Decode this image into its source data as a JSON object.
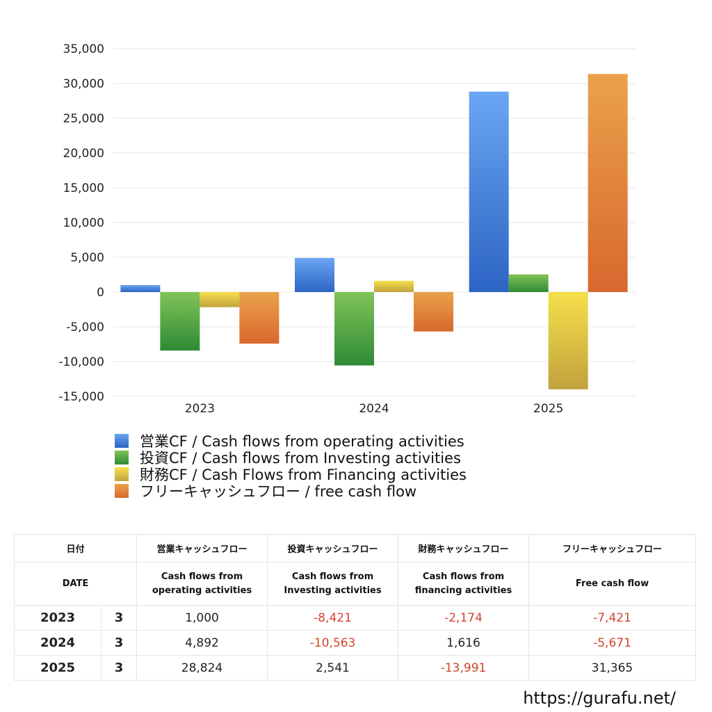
{
  "chart_data": {
    "type": "bar",
    "categories": [
      "2023",
      "2024",
      "2025"
    ],
    "series": [
      {
        "name": "営業CF / Cash flows from operating activities",
        "values": [
          1000,
          4892,
          28824
        ],
        "color_top": "#6aa6f2",
        "color_bottom": "#2d64c4"
      },
      {
        "name": "投資CF / Cash flows from Investing activities",
        "values": [
          -8421,
          -10563,
          2541
        ],
        "color_top": "#7fc458",
        "color_bottom": "#2f8a35"
      },
      {
        "name": "財務CF / Cash Flows from Financing activities",
        "values": [
          -2174,
          1616,
          -13991
        ],
        "color_top": "#f6e04a",
        "color_bottom": "#c1a23e"
      },
      {
        "name": "フリーキャッシュフロー / free cash flow",
        "values": [
          -7421,
          -5671,
          31365
        ],
        "color_top": "#eaa24a",
        "color_bottom": "#d8682e"
      }
    ],
    "yticks": [
      "35,000",
      "30,000",
      "25,000",
      "20,000",
      "15,000",
      "10,000",
      "5,000",
      "0",
      "-5,000",
      "-10,000",
      "-15,000"
    ],
    "ylim": [
      -15000,
      35000
    ],
    "grid": true,
    "legend_position": "bottom-left"
  },
  "table": {
    "header_date_ja": "日付",
    "header_date_en": "DATE",
    "columns": [
      {
        "ja": "営業キャッシュフロー",
        "en_line1": "Cash flows from",
        "en_line2": "operating activities"
      },
      {
        "ja": "投資キャッシュフロー",
        "en_line1": "Cash flows from",
        "en_line2": "Investing activities"
      },
      {
        "ja": "財務キャッシュフロー",
        "en_line1": "Cash flows from",
        "en_line2": "financing activities"
      },
      {
        "ja": "フリーキャッシュフロー",
        "en_line1": "Free cash flow",
        "en_line2": ""
      }
    ],
    "rows": [
      {
        "year": "2023",
        "month": "3",
        "values": [
          "1,000",
          "-8,421",
          "-2,174",
          "-7,421"
        ]
      },
      {
        "year": "2024",
        "month": "3",
        "values": [
          "4,892",
          "-10,563",
          "1,616",
          "-5,671"
        ]
      },
      {
        "year": "2025",
        "month": "3",
        "values": [
          "28,824",
          "2,541",
          "-13,991",
          "31,365"
        ]
      }
    ]
  },
  "footer": {
    "url": "https://gurafu.net/"
  }
}
